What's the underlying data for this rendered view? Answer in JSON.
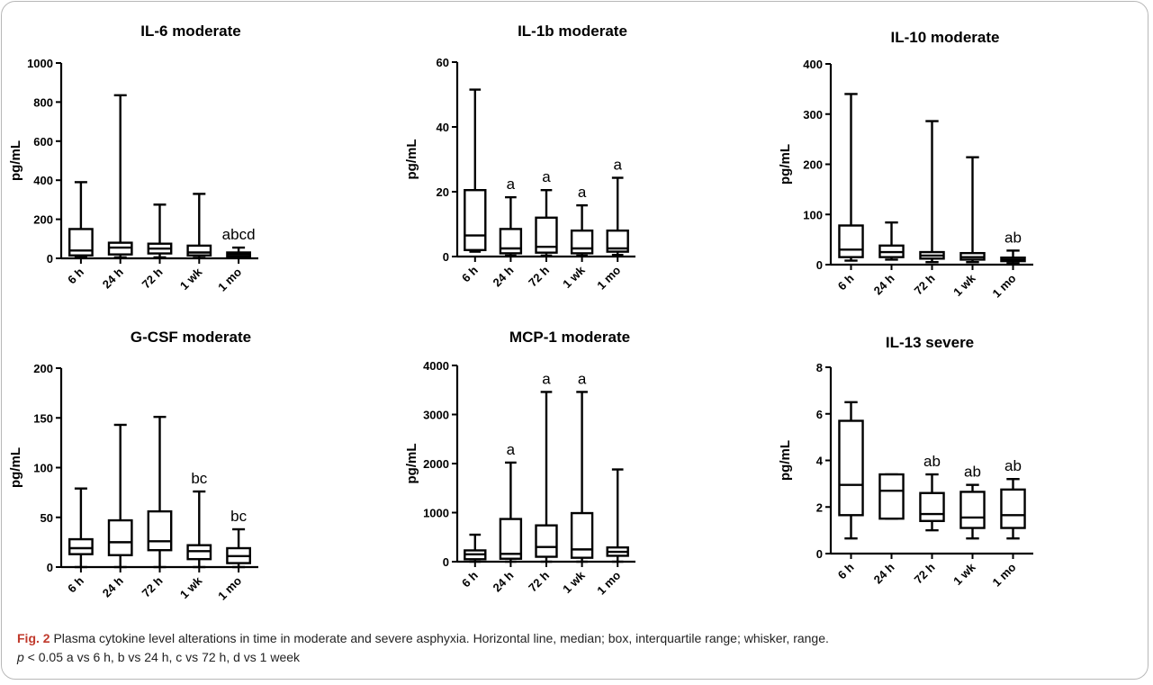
{
  "caption": {
    "fig_label": "Fig. 2",
    "line1": "Plasma cytokine level alterations in time in moderate and severe asphyxia. Horizontal line, median; box, interquartile range; whisker, range.",
    "p_symbol": "p",
    "line2_rest": " < 0.05 a vs 6 h, b vs 24 h, c vs 72 h, d vs 1 week"
  },
  "colors": {
    "stroke": "#000000",
    "frame": "#b8b8b8",
    "fig_label": "#c0392b"
  },
  "chart_data": [
    {
      "type": "boxplot",
      "title": "IL-6 moderate",
      "ylabel": "pg/mL",
      "ylim": [
        0,
        1000
      ],
      "yticks": [
        0,
        200,
        400,
        600,
        800,
        1000
      ],
      "categories": [
        "6 h",
        "24 h",
        "72 h",
        "1 wk",
        "1 mo"
      ],
      "boxes": [
        {
          "min": 5,
          "q1": 15,
          "median": 40,
          "q3": 150,
          "max": 390,
          "annotation": ""
        },
        {
          "min": 5,
          "q1": 20,
          "median": 55,
          "q3": 80,
          "max": 835,
          "annotation": ""
        },
        {
          "min": 5,
          "q1": 25,
          "median": 50,
          "q3": 75,
          "max": 275,
          "annotation": ""
        },
        {
          "min": 3,
          "q1": 15,
          "median": 30,
          "q3": 65,
          "max": 330,
          "annotation": ""
        },
        {
          "min": 3,
          "q1": 10,
          "median": 20,
          "q3": 30,
          "max": 55,
          "annotation": "abcd"
        }
      ]
    },
    {
      "type": "boxplot",
      "title": "IL-1b moderate",
      "ylabel": "pg/mL",
      "ylim": [
        0,
        60
      ],
      "yticks": [
        0,
        20,
        40,
        60
      ],
      "categories": [
        "6 h",
        "24 h",
        "72 h",
        "1 wk",
        "1 mo"
      ],
      "boxes": [
        {
          "min": 1.5,
          "q1": 2,
          "median": 6.5,
          "q3": 20.5,
          "max": 51.5,
          "annotation": ""
        },
        {
          "min": 0.3,
          "q1": 1,
          "median": 2.5,
          "q3": 8.5,
          "max": 18.3,
          "annotation": "a"
        },
        {
          "min": 0.3,
          "q1": 1.2,
          "median": 3,
          "q3": 12,
          "max": 20.5,
          "annotation": "a"
        },
        {
          "min": 0.3,
          "q1": 1,
          "median": 2.5,
          "q3": 8,
          "max": 15.8,
          "annotation": "a"
        },
        {
          "min": 0.5,
          "q1": 1.5,
          "median": 2.5,
          "q3": 8,
          "max": 24.3,
          "annotation": "a"
        }
      ]
    },
    {
      "type": "boxplot",
      "title": "IL-10 moderate",
      "ylabel": "pg/mL",
      "ylim": [
        0,
        400
      ],
      "yticks": [
        0,
        100,
        200,
        300,
        400
      ],
      "categories": [
        "6 h",
        "24 h",
        "72 h",
        "1 wk",
        "1 mo"
      ],
      "boxes": [
        {
          "min": 8,
          "q1": 15,
          "median": 30,
          "q3": 78,
          "max": 340,
          "annotation": ""
        },
        {
          "min": 10,
          "q1": 15,
          "median": 25,
          "q3": 38,
          "max": 84,
          "annotation": ""
        },
        {
          "min": 5,
          "q1": 12,
          "median": 18,
          "q3": 25,
          "max": 286,
          "annotation": ""
        },
        {
          "min": 5,
          "q1": 10,
          "median": 15,
          "q3": 23,
          "max": 214,
          "annotation": ""
        },
        {
          "min": 3,
          "q1": 7,
          "median": 10,
          "q3": 14,
          "max": 28,
          "annotation": "ab"
        }
      ]
    },
    {
      "type": "boxplot",
      "title": "G-CSF moderate",
      "ylabel": "pg/mL",
      "ylim": [
        0,
        200
      ],
      "yticks": [
        0,
        50,
        100,
        150,
        200
      ],
      "categories": [
        "6 h",
        "24 h",
        "72 h",
        "1 wk",
        "1 mo"
      ],
      "boxes": [
        {
          "min": 0,
          "q1": 13,
          "median": 19,
          "q3": 28,
          "max": 79,
          "annotation": ""
        },
        {
          "min": 0,
          "q1": 12,
          "median": 25,
          "q3": 47,
          "max": 143,
          "annotation": ""
        },
        {
          "min": 0,
          "q1": 17,
          "median": 26,
          "q3": 56,
          "max": 151,
          "annotation": ""
        },
        {
          "min": 0,
          "q1": 8,
          "median": 16,
          "q3": 22,
          "max": 76,
          "annotation": "bc"
        },
        {
          "min": 0,
          "q1": 4,
          "median": 11,
          "q3": 19,
          "max": 38,
          "annotation": "bc"
        }
      ]
    },
    {
      "type": "boxplot",
      "title": "MCP-1 moderate",
      "ylabel": "pg/mL",
      "ylim": [
        0,
        4000
      ],
      "yticks": [
        0,
        1000,
        2000,
        3000,
        4000
      ],
      "categories": [
        "6 h",
        "24 h",
        "72 h",
        "1 wk",
        "1 mo"
      ],
      "boxes": [
        {
          "min": 0,
          "q1": 50,
          "median": 150,
          "q3": 230,
          "max": 550,
          "annotation": ""
        },
        {
          "min": 0,
          "q1": 60,
          "median": 160,
          "q3": 870,
          "max": 2020,
          "annotation": "a"
        },
        {
          "min": 0,
          "q1": 100,
          "median": 300,
          "q3": 740,
          "max": 3460,
          "annotation": "a"
        },
        {
          "min": 0,
          "q1": 80,
          "median": 250,
          "q3": 990,
          "max": 3460,
          "annotation": "a"
        },
        {
          "min": 0,
          "q1": 120,
          "median": 200,
          "q3": 290,
          "max": 1880,
          "annotation": ""
        }
      ]
    },
    {
      "type": "boxplot",
      "title": "IL-13 severe",
      "ylabel": "pg/mL",
      "ylim": [
        0,
        8
      ],
      "yticks": [
        0,
        2,
        4,
        6,
        8
      ],
      "categories": [
        "6 h",
        "24 h",
        "72 h",
        "1 wk",
        "1 mo"
      ],
      "boxes": [
        {
          "min": 0.65,
          "q1": 1.65,
          "median": 2.95,
          "q3": 5.7,
          "max": 6.5,
          "annotation": ""
        },
        {
          "min": 1.5,
          "q1": 1.5,
          "median": 2.7,
          "q3": 3.4,
          "max": 3.4,
          "annotation": ""
        },
        {
          "min": 1.0,
          "q1": 1.4,
          "median": 1.7,
          "q3": 2.6,
          "max": 3.4,
          "annotation": "ab"
        },
        {
          "min": 0.65,
          "q1": 1.1,
          "median": 1.55,
          "q3": 2.65,
          "max": 2.95,
          "annotation": "ab"
        },
        {
          "min": 0.65,
          "q1": 1.1,
          "median": 1.65,
          "q3": 2.75,
          "max": 3.2,
          "annotation": "ab"
        }
      ]
    }
  ]
}
